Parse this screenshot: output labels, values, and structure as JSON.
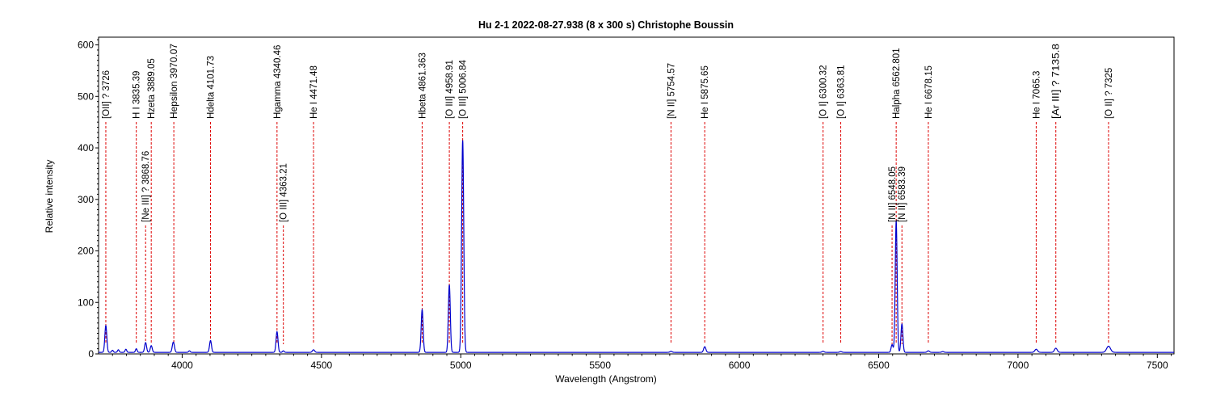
{
  "chart_data": {
    "type": "line",
    "title": "Hu 2-1   2022-08-27.938   (8 x 300 s)   Christophe Boussin",
    "xlabel": "Wavelength (Angstrom)",
    "ylabel": "Relative intensity",
    "xlim": [
      3700,
      7560
    ],
    "ylim": [
      0,
      615
    ],
    "xticks": [
      4000,
      4500,
      5000,
      5500,
      6000,
      6500,
      7000,
      7500
    ],
    "yticks": [
      0,
      100,
      200,
      300,
      400,
      500,
      600
    ],
    "grid": false,
    "series_color": "#0000cc",
    "line_color": "#dd0000",
    "continuum": 3,
    "peaks": [
      {
        "x": 3726,
        "h": 52,
        "w": 3.5
      },
      {
        "x": 3750,
        "h": 4,
        "w": 3
      },
      {
        "x": 3771,
        "h": 5,
        "w": 3
      },
      {
        "x": 3798,
        "h": 6,
        "w": 3
      },
      {
        "x": 3835.39,
        "h": 7,
        "w": 3
      },
      {
        "x": 3868.76,
        "h": 19,
        "w": 3.5
      },
      {
        "x": 3889.05,
        "h": 13,
        "w": 3.5
      },
      {
        "x": 3967,
        "h": 12,
        "w": 3.5
      },
      {
        "x": 3970.07,
        "h": 10,
        "w": 3.5
      },
      {
        "x": 4026,
        "h": 3,
        "w": 3
      },
      {
        "x": 4101.73,
        "h": 23,
        "w": 3.5
      },
      {
        "x": 4340.46,
        "h": 40,
        "w": 3.5
      },
      {
        "x": 4363.21,
        "h": 3,
        "w": 3
      },
      {
        "x": 4471.48,
        "h": 5,
        "w": 4
      },
      {
        "x": 4861.363,
        "h": 83,
        "w": 3.5
      },
      {
        "x": 4958.91,
        "h": 131,
        "w": 3.5
      },
      {
        "x": 5006.84,
        "h": 412,
        "w": 3.8
      },
      {
        "x": 5754.57,
        "h": 2,
        "w": 4
      },
      {
        "x": 5875.65,
        "h": 11,
        "w": 4
      },
      {
        "x": 6300.32,
        "h": 2,
        "w": 4
      },
      {
        "x": 6363.81,
        "h": 1.5,
        "w": 4
      },
      {
        "x": 6548.05,
        "h": 15,
        "w": 3.5
      },
      {
        "x": 6562.801,
        "h": 255,
        "w": 3.5
      },
      {
        "x": 6583.39,
        "h": 55,
        "w": 3.5
      },
      {
        "x": 6678.15,
        "h": 3,
        "w": 4
      },
      {
        "x": 6730,
        "h": 1.5,
        "w": 4
      },
      {
        "x": 7065.3,
        "h": 6,
        "w": 5
      },
      {
        "x": 7135.8,
        "h": 8,
        "w": 5
      },
      {
        "x": 7325,
        "h": 12,
        "w": 7
      }
    ],
    "annotations": [
      {
        "label": "[OII] ? 3726",
        "x": 3726,
        "level": "top"
      },
      {
        "label": "H I 3835.39",
        "x": 3835.39,
        "level": "top"
      },
      {
        "label": "[Ne III] ? 3868.76",
        "x": 3868.76,
        "level": "low"
      },
      {
        "label": "Hzeta 3889.05",
        "x": 3889.05,
        "level": "top"
      },
      {
        "label": "Hepsilon 3970.07",
        "x": 3970.07,
        "level": "top"
      },
      {
        "label": "Hdelta 4101.73",
        "x": 4101.73,
        "level": "top"
      },
      {
        "label": "Hgamma 4340.46",
        "x": 4340.46,
        "level": "top"
      },
      {
        "label": "[O III] 4363.21",
        "x": 4363.21,
        "level": "low"
      },
      {
        "label": "He I 4471.48",
        "x": 4471.48,
        "level": "top"
      },
      {
        "label": "Hbeta 4861.363",
        "x": 4861.363,
        "level": "top"
      },
      {
        "label": "[O III] 4958.91",
        "x": 4958.91,
        "level": "top"
      },
      {
        "label": "[O III] 5006.84",
        "x": 5006.84,
        "level": "top"
      },
      {
        "label": "[N II] 5754.57",
        "x": 5754.57,
        "level": "top"
      },
      {
        "label": "He I 5875.65",
        "x": 5875.65,
        "level": "top"
      },
      {
        "label": "[O I] 6300.32",
        "x": 6300.32,
        "level": "top"
      },
      {
        "label": "[O I] 6363.81",
        "x": 6363.81,
        "level": "top"
      },
      {
        "label": "[N II] 6548.05",
        "x": 6548.05,
        "level": "low"
      },
      {
        "label": "Halpha 6562.801",
        "x": 6562.801,
        "level": "top"
      },
      {
        "label": "[N II] 6583.39",
        "x": 6583.39,
        "level": "low"
      },
      {
        "label": "He I 6678.15",
        "x": 6678.15,
        "level": "top"
      },
      {
        "label": "He I 7065.3",
        "x": 7065.3,
        "level": "top"
      },
      {
        "label": "[Ar III] ? 7135.8",
        "x": 7135.8,
        "level": "top"
      },
      {
        "label": "[O II] ? 7325",
        "x": 7325,
        "level": "top"
      }
    ]
  }
}
